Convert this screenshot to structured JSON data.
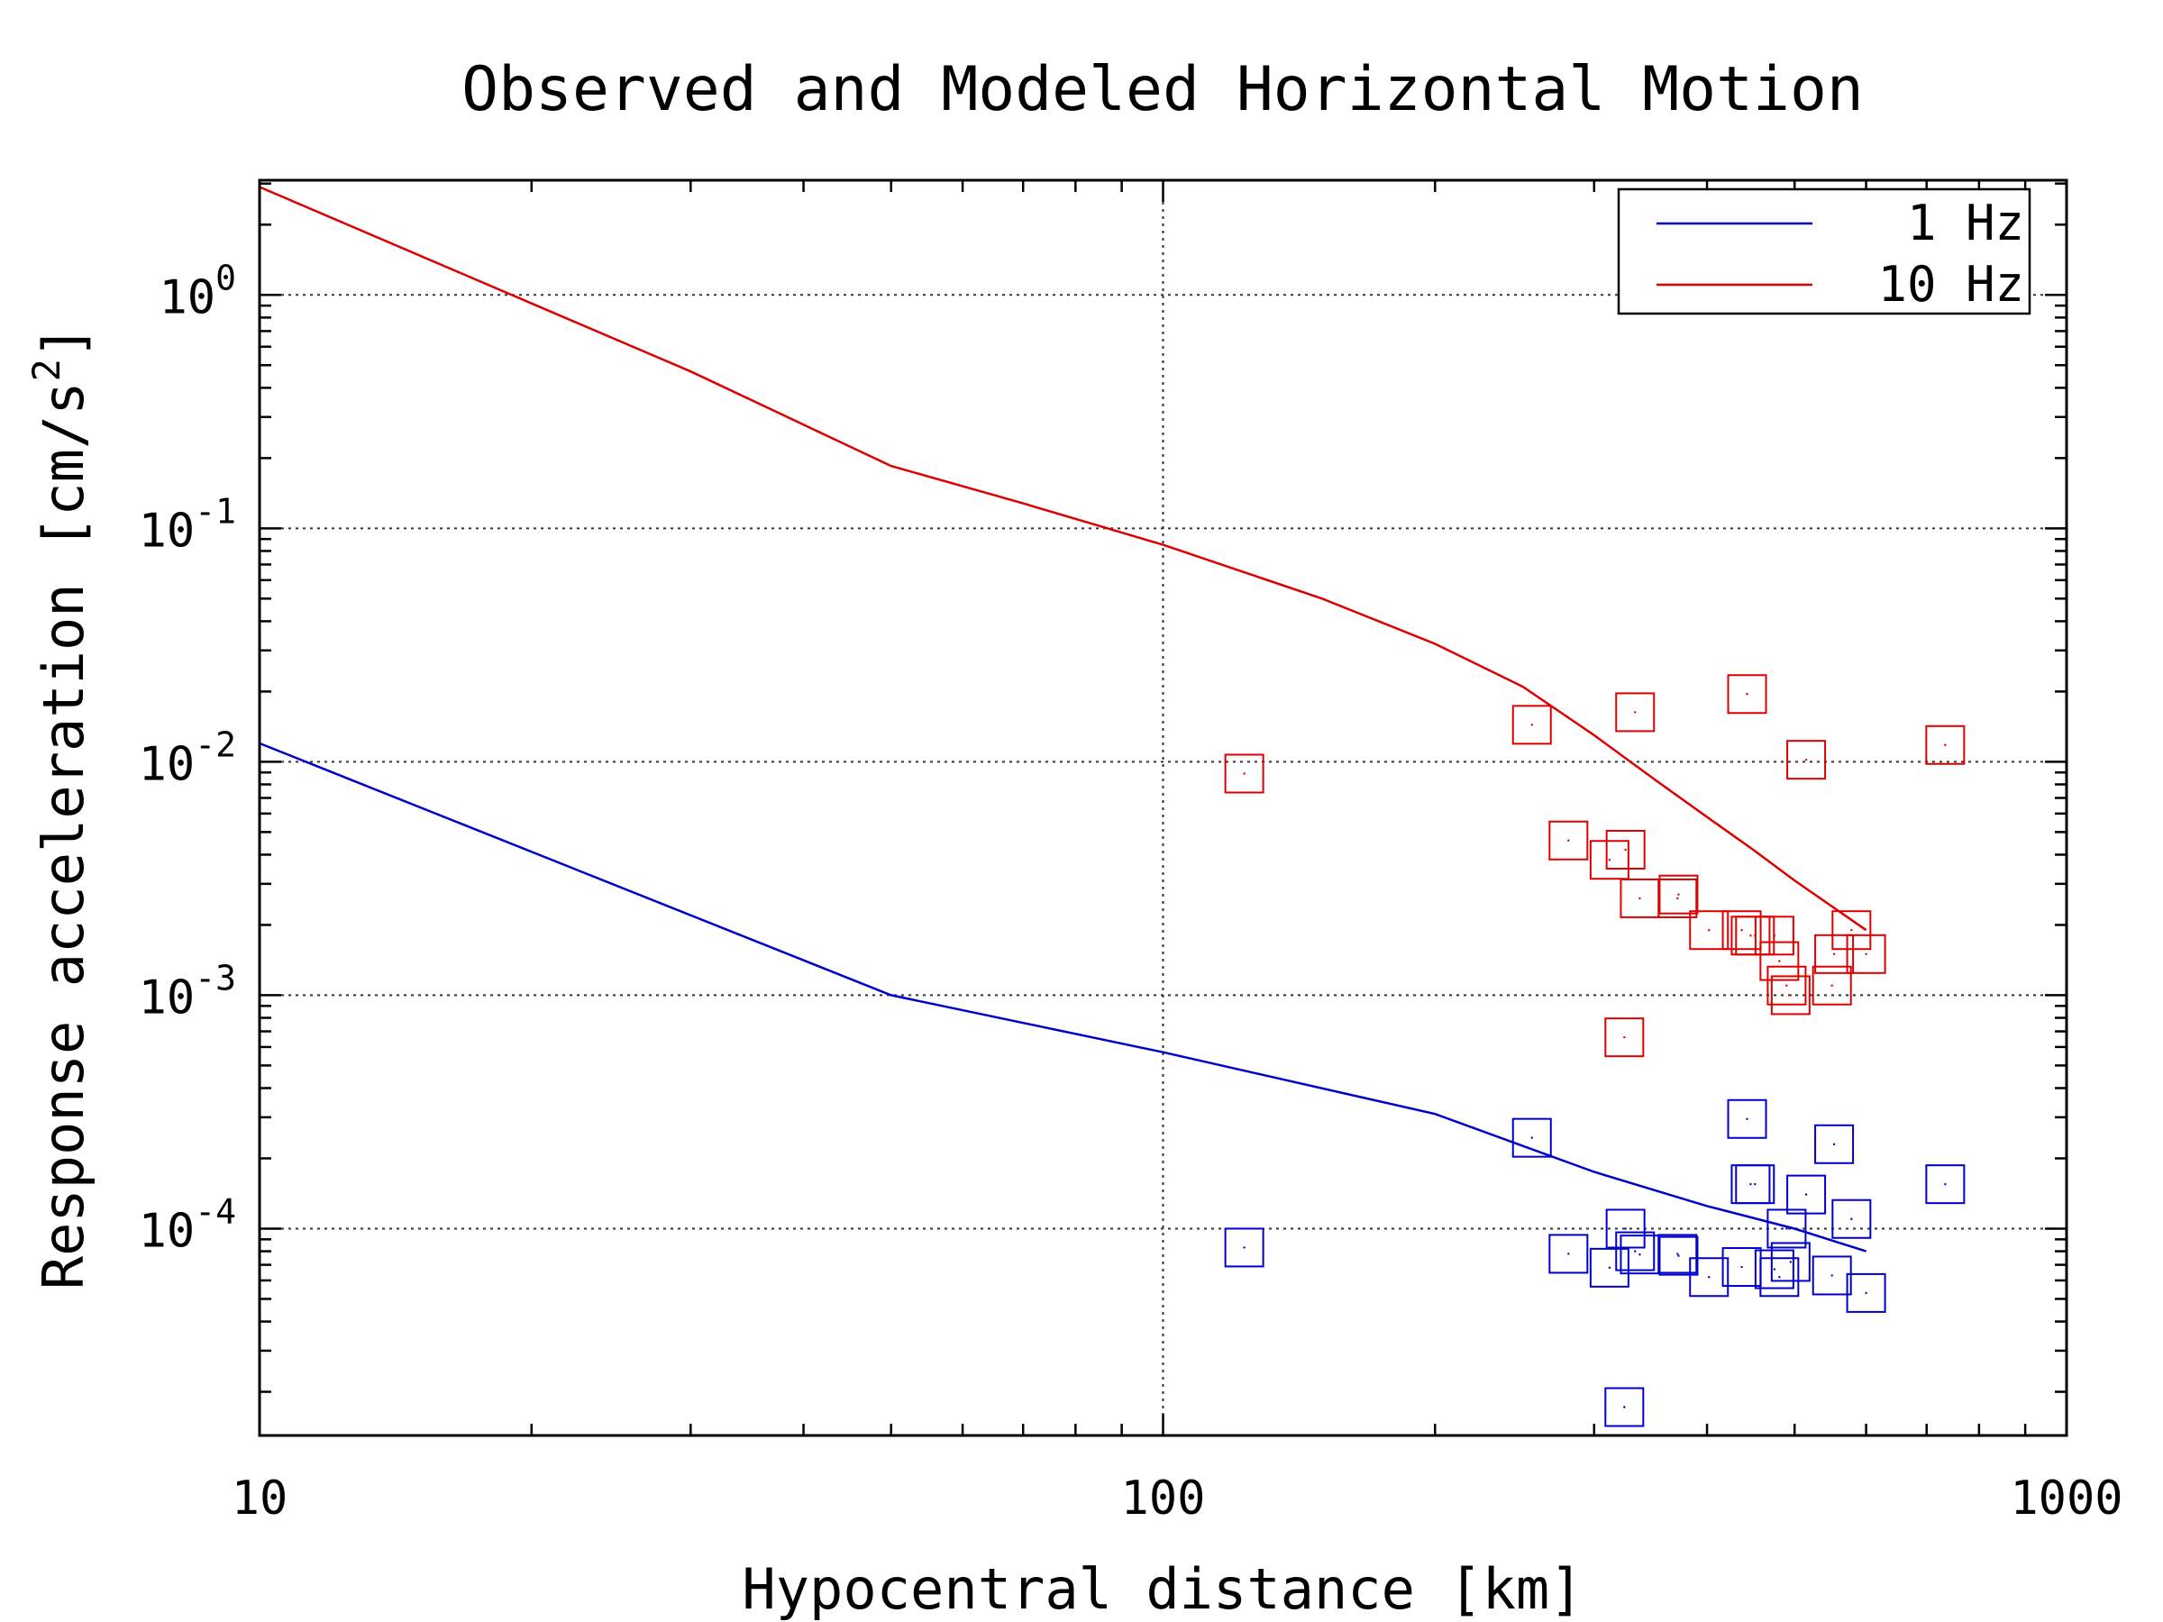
{
  "chart_data": {
    "type": "scatter",
    "title": "Observed and Modeled Horizontal Motion",
    "xlabel": "Hypocentral distance [km]",
    "ylabel": {
      "main": "Response acceleration [cm/s",
      "sup": "2",
      "close": "]"
    },
    "x_scale": "log",
    "y_scale": "log",
    "xlim": [
      10,
      1000
    ],
    "ylim": [
      1.3e-05,
      3.1
    ],
    "x_ticks": [
      {
        "value": 10,
        "label": "10"
      },
      {
        "value": 100,
        "label": "100"
      },
      {
        "value": 1000,
        "label": "1000"
      }
    ],
    "y_ticks": [
      {
        "value": 1,
        "base": "10",
        "exp": "0"
      },
      {
        "value": 0.1,
        "base": "10",
        "exp": "-1"
      },
      {
        "value": 0.01,
        "base": "10",
        "exp": "-2"
      },
      {
        "value": 0.001,
        "base": "10",
        "exp": "-3"
      },
      {
        "value": 0.0001,
        "base": "10",
        "exp": "-4"
      }
    ],
    "grid": true,
    "legend_position": "top-right",
    "legend": [
      {
        "label": "1 Hz",
        "color": "#0000cc"
      },
      {
        "label": "10 Hz",
        "color": "#dd0000"
      }
    ],
    "model_lines": [
      {
        "name": "1 Hz",
        "color": "#0000cc",
        "points": [
          [
            10,
            0.012
          ],
          [
            50,
            0.001
          ],
          [
            100,
            0.00057
          ],
          [
            200,
            0.00031
          ],
          [
            300,
            0.000175
          ],
          [
            400,
            0.000125
          ],
          [
            500,
            0.0001
          ],
          [
            600,
            8e-05
          ]
        ]
      },
      {
        "name": "10 Hz",
        "color": "#dd0000",
        "points": [
          [
            10,
            2.9
          ],
          [
            20,
            0.92
          ],
          [
            30,
            0.47
          ],
          [
            50,
            0.185
          ],
          [
            70,
            0.128
          ],
          [
            100,
            0.085
          ],
          [
            150,
            0.05
          ],
          [
            200,
            0.032
          ],
          [
            250,
            0.021
          ],
          [
            300,
            0.013
          ],
          [
            350,
            0.0084
          ],
          [
            400,
            0.0058
          ],
          [
            450,
            0.0042
          ],
          [
            500,
            0.0031
          ],
          [
            550,
            0.0024
          ],
          [
            600,
            0.0019
          ]
        ]
      }
    ],
    "observations": [
      {
        "name": "1 Hz observed",
        "color": "#0000cc",
        "points": [
          [
            123,
            8.3e-05
          ],
          [
            256,
            0.000245
          ],
          [
            281,
            7.8e-05
          ],
          [
            312,
            6.8e-05
          ],
          [
            325,
            0.0001
          ],
          [
            333,
            8e-05
          ],
          [
            337,
            7.75e-05
          ],
          [
            371,
            7.8e-05
          ],
          [
            372,
            7.65e-05
          ],
          [
            402,
            6.2e-05
          ],
          [
            437,
            6.85e-05
          ],
          [
            443,
            0.000295
          ],
          [
            447,
            0.000155
          ],
          [
            452,
            0.000155
          ],
          [
            475,
            6.7e-05
          ],
          [
            481,
            6.2e-05
          ],
          [
            490,
            0.0001
          ],
          [
            495,
            7.2e-05
          ],
          [
            515,
            0.00014
          ],
          [
            550,
            6.3e-05
          ],
          [
            553,
            0.00023
          ],
          [
            578,
            0.00011
          ],
          [
            600,
            5.3e-05
          ],
          [
            734,
            0.000155
          ],
          [
            324,
            1.72e-05
          ]
        ]
      },
      {
        "name": "10 Hz observed",
        "color": "#dd0000",
        "points": [
          [
            123,
            0.0089
          ],
          [
            256,
            0.0144
          ],
          [
            281,
            0.0046
          ],
          [
            312,
            0.0038
          ],
          [
            325,
            0.0042
          ],
          [
            333,
            0.0163
          ],
          [
            337,
            0.0026
          ],
          [
            371,
            0.0026
          ],
          [
            372,
            0.0027
          ],
          [
            402,
            0.0019
          ],
          [
            437,
            0.0019
          ],
          [
            443,
            0.0195
          ],
          [
            447,
            0.0018
          ],
          [
            452,
            0.0018
          ],
          [
            475,
            0.0018
          ],
          [
            481,
            0.0014
          ],
          [
            490,
            0.0011
          ],
          [
            495,
            0.001
          ],
          [
            515,
            0.0102
          ],
          [
            550,
            0.0011
          ],
          [
            553,
            0.0015
          ],
          [
            578,
            0.0019
          ],
          [
            600,
            0.0015
          ],
          [
            734,
            0.0118
          ],
          [
            324,
            0.00066
          ]
        ]
      }
    ]
  }
}
